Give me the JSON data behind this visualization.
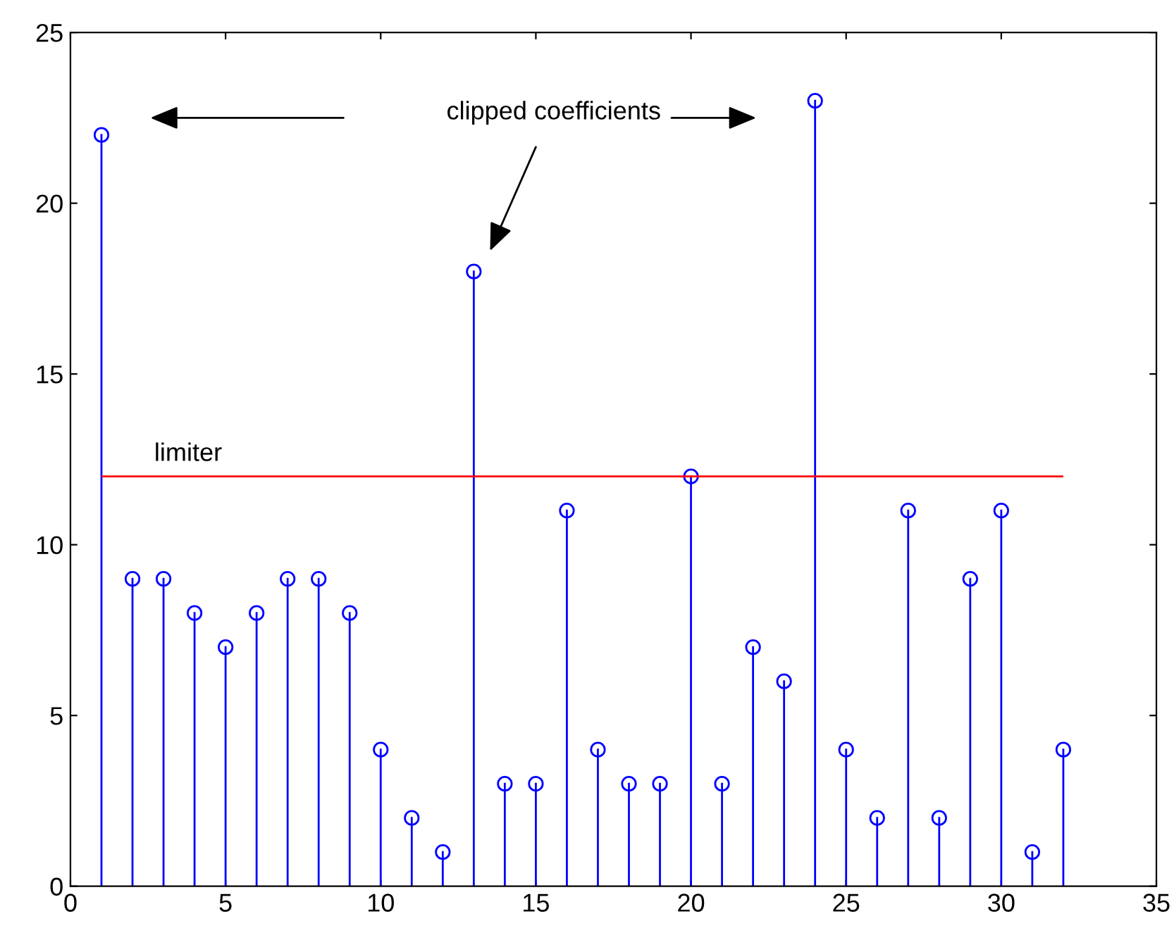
{
  "chart_data": {
    "type": "lollipop",
    "x": [
      1,
      2,
      3,
      4,
      5,
      6,
      7,
      8,
      9,
      10,
      11,
      12,
      13,
      14,
      15,
      16,
      17,
      18,
      19,
      20,
      21,
      22,
      23,
      24,
      25,
      26,
      27,
      28,
      29,
      30,
      31,
      32
    ],
    "values": [
      22,
      9,
      9,
      8,
      7,
      8,
      9,
      9,
      8,
      4,
      2,
      1,
      18,
      3,
      3,
      11,
      4,
      3,
      3,
      12,
      3,
      7,
      6,
      23,
      4,
      2,
      11,
      2,
      9,
      11,
      1,
      4
    ],
    "color": "#0000ff",
    "marker": "circle",
    "grid": false,
    "xlim": [
      0,
      35
    ],
    "xticks": [
      0,
      5,
      10,
      15,
      20,
      25,
      30,
      35
    ],
    "ylim": [
      0,
      25
    ],
    "yticks": [
      0,
      5,
      10,
      15,
      20,
      25
    ],
    "ref_lines": [
      {
        "axis": "y",
        "value": 12,
        "label": "limiter",
        "color": "#ff0000"
      }
    ],
    "annotations": [
      "clipped coefficients"
    ]
  }
}
